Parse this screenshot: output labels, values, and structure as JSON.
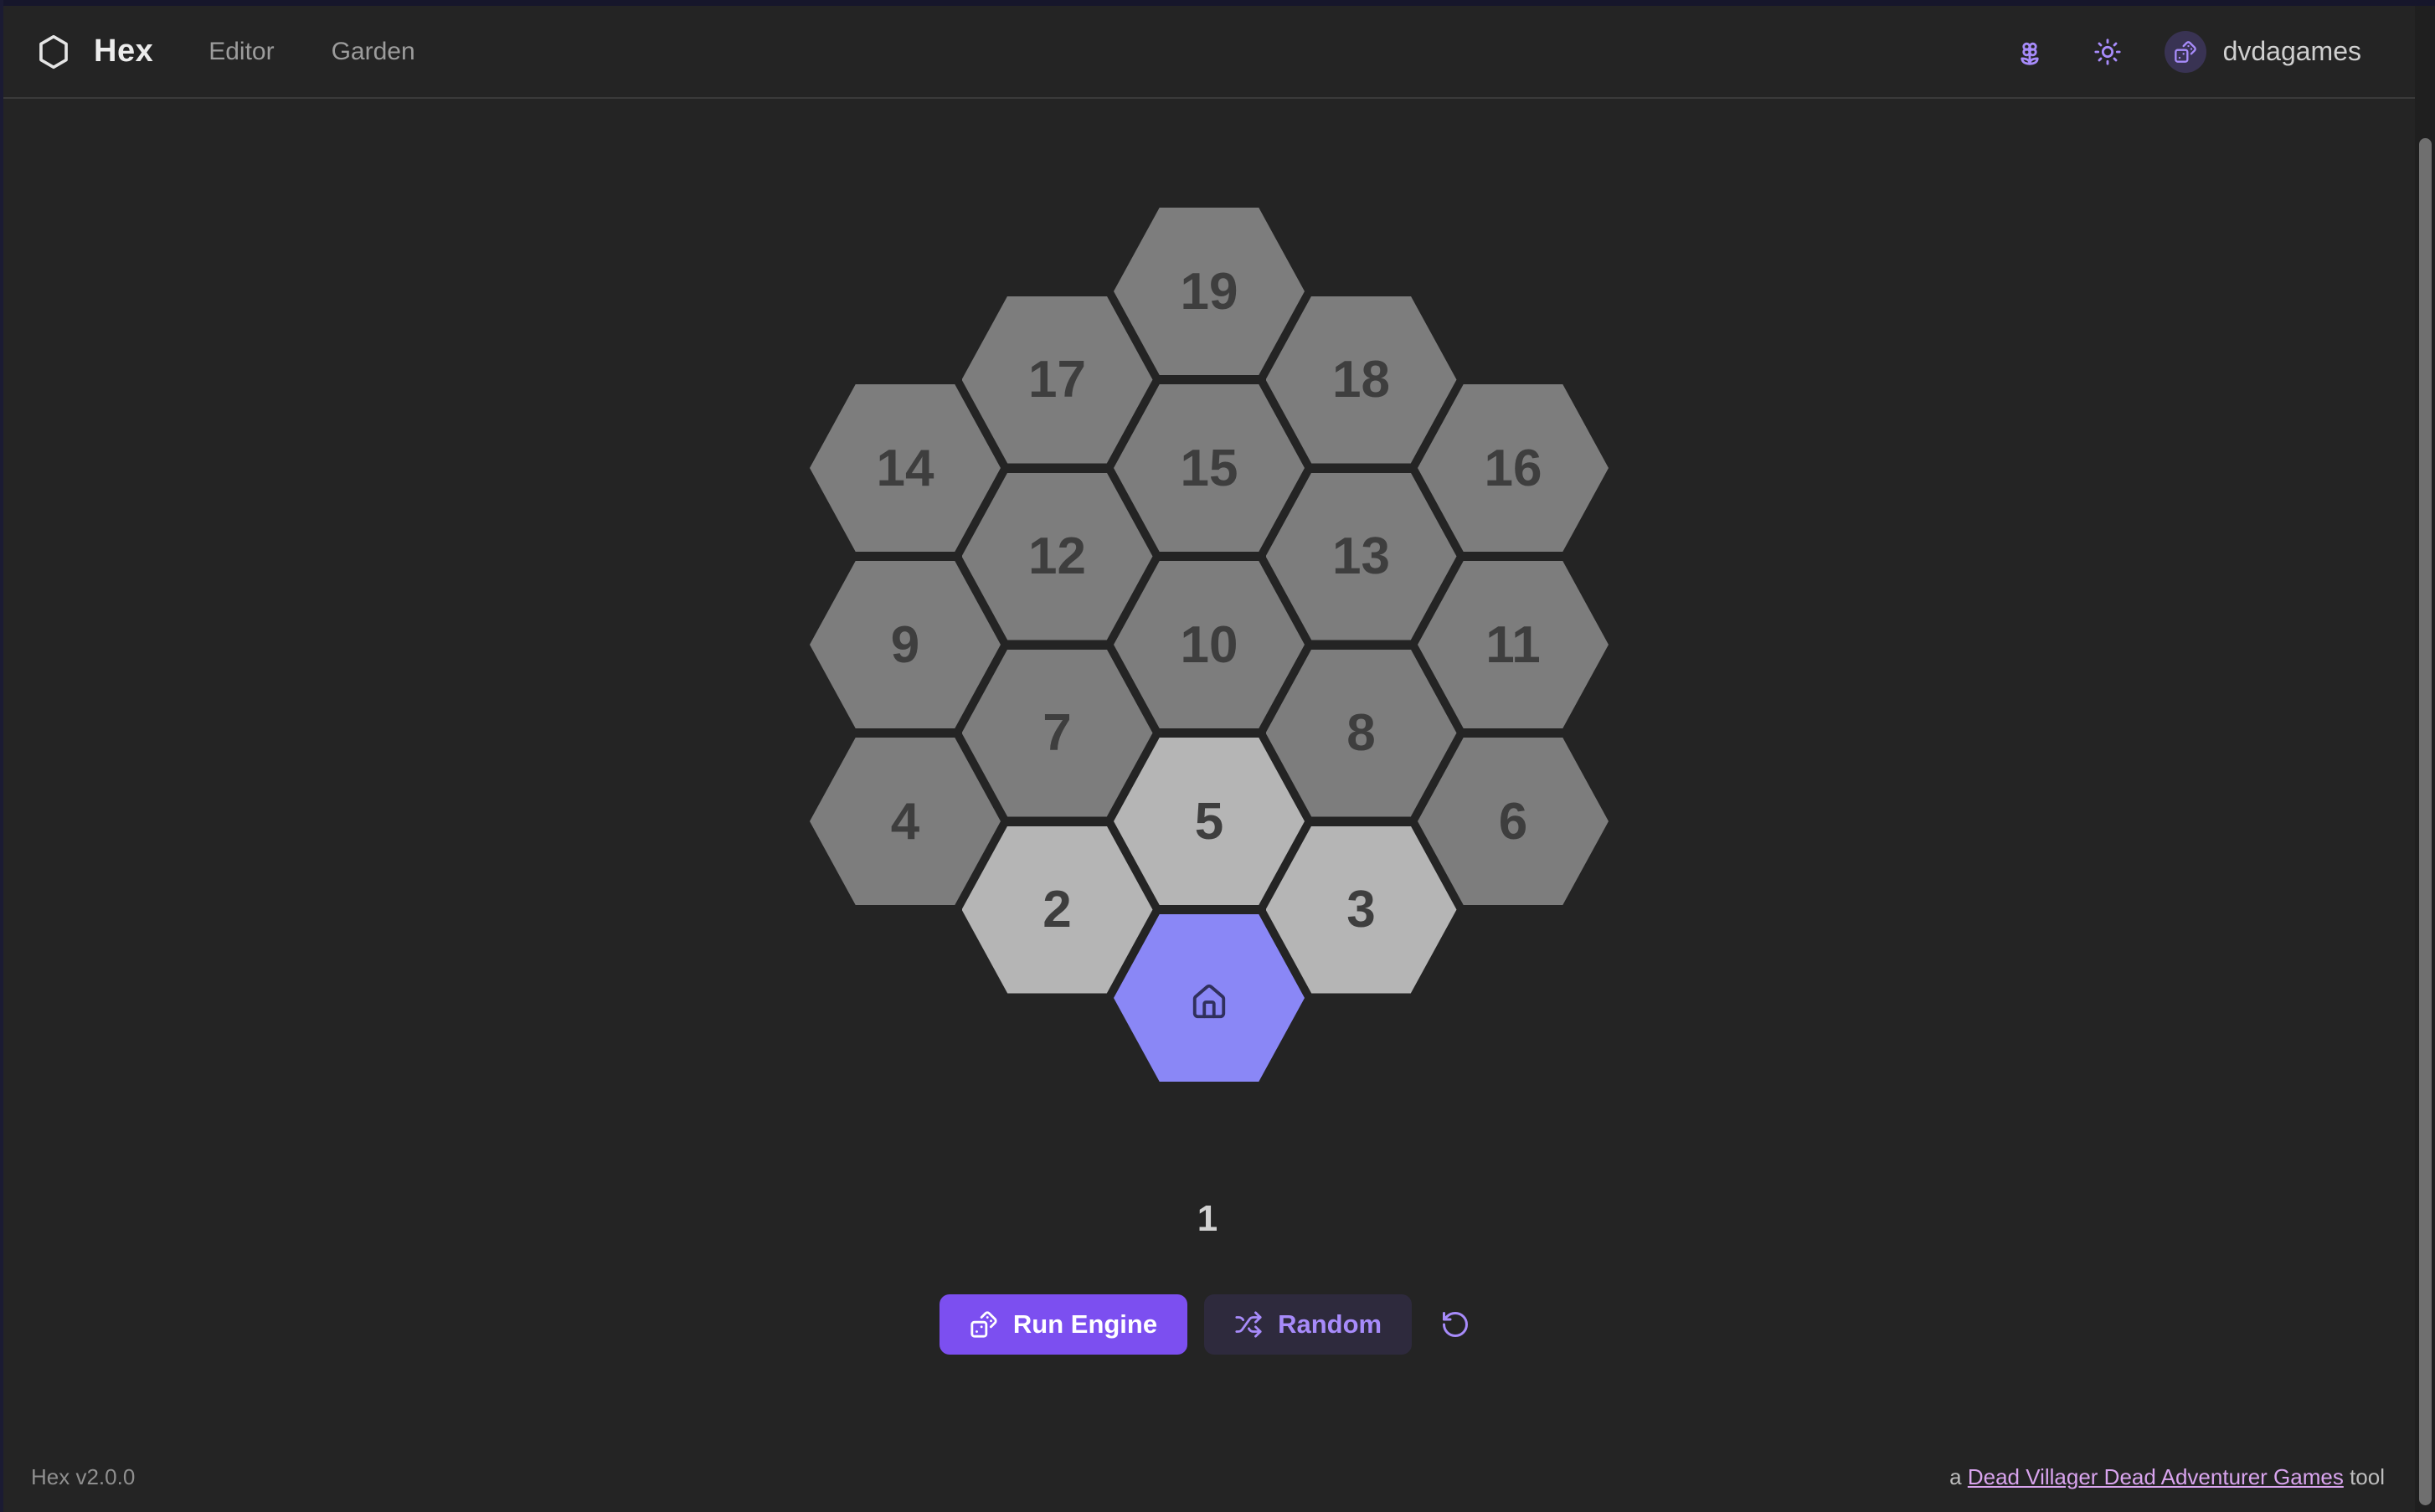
{
  "header": {
    "brand": "Hex",
    "logo_icon": "hexagon-icon",
    "nav_items": [
      {
        "label": "Editor"
      },
      {
        "label": "Garden"
      }
    ],
    "actions": {
      "garden_icon": "flower-icon",
      "theme_icon": "sun-icon",
      "avatar_icon": "dices-icon",
      "username": "dvdagames"
    }
  },
  "board": {
    "counter": "1",
    "cells": [
      {
        "label": "19",
        "col": 2,
        "row": 0,
        "variant": "default"
      },
      {
        "label": "17",
        "col": 1,
        "row": 0,
        "variant": "default"
      },
      {
        "label": "18",
        "col": 3,
        "row": 0,
        "variant": "default"
      },
      {
        "label": "14",
        "col": 0,
        "row": 0,
        "variant": "default"
      },
      {
        "label": "15",
        "col": 2,
        "row": 1,
        "variant": "default"
      },
      {
        "label": "16",
        "col": 4,
        "row": 0,
        "variant": "default"
      },
      {
        "label": "12",
        "col": 1,
        "row": 1,
        "variant": "default"
      },
      {
        "label": "13",
        "col": 3,
        "row": 1,
        "variant": "default"
      },
      {
        "label": "9",
        "col": 0,
        "row": 1,
        "variant": "default"
      },
      {
        "label": "10",
        "col": 2,
        "row": 2,
        "variant": "default"
      },
      {
        "label": "11",
        "col": 4,
        "row": 1,
        "variant": "default"
      },
      {
        "label": "7",
        "col": 1,
        "row": 2,
        "variant": "default"
      },
      {
        "label": "8",
        "col": 3,
        "row": 2,
        "variant": "default"
      },
      {
        "label": "4",
        "col": 0,
        "row": 2,
        "variant": "default"
      },
      {
        "label": "5",
        "col": 2,
        "row": 3,
        "variant": "light"
      },
      {
        "label": "6",
        "col": 4,
        "row": 2,
        "variant": "default"
      },
      {
        "label": "2",
        "col": 1,
        "row": 3,
        "variant": "light"
      },
      {
        "label": "3",
        "col": 3,
        "row": 3,
        "variant": "light"
      },
      {
        "label": "",
        "col": 2,
        "row": 4,
        "variant": "home",
        "icon": "house-icon"
      }
    ],
    "colors": {
      "default": "#7d7d7d",
      "light": "#b5b5b5",
      "home": "#8a87f6",
      "label": "#3e3e3e"
    }
  },
  "controls": {
    "run_label": "Run Engine",
    "run_icon": "dices-icon",
    "random_label": "Random",
    "random_icon": "shuffle-icon",
    "reset_icon": "rotate-ccw-icon"
  },
  "footer": {
    "version": "Hex v2.0.0",
    "credit_prefix": "a ",
    "credit_link": "Dead Villager Dead Adventurer Games",
    "credit_suffix": " tool"
  }
}
